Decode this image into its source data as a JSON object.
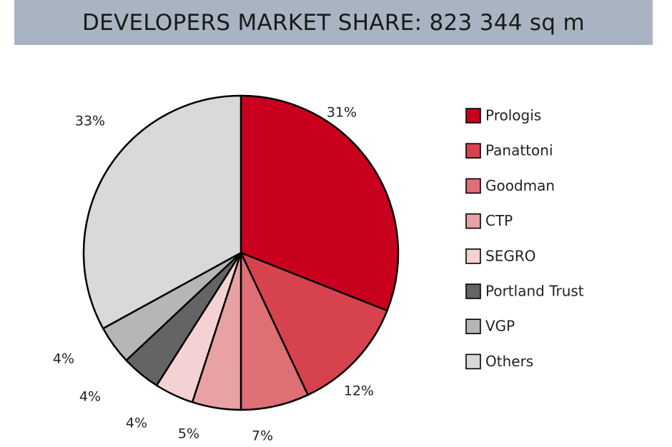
{
  "title": "DEVELOPERS MARKET SHARE: 823 344 sq m",
  "chart_data": {
    "type": "pie",
    "title": "DEVELOPERS MARKET SHARE: 823 344 sq m",
    "legend_position": "right",
    "slices": [
      {
        "name": "Prologis",
        "value": 31,
        "label": "31%",
        "color": "#c8001e"
      },
      {
        "name": "Panattoni",
        "value": 12,
        "label": "12%",
        "color": "#d6434e"
      },
      {
        "name": "Goodman",
        "value": 7,
        "label": "7%",
        "color": "#de6f75"
      },
      {
        "name": "CTP",
        "value": 5,
        "label": "5%",
        "color": "#e8a1a4"
      },
      {
        "name": "SEGRO",
        "value": 4,
        "label": "4%",
        "color": "#f4d2d3"
      },
      {
        "name": "Portland Trust",
        "value": 4,
        "label": "4%",
        "color": "#646464"
      },
      {
        "name": "VGP",
        "value": 4,
        "label": "4%",
        "color": "#b6b6b6"
      },
      {
        "name": "Others",
        "value": 33,
        "label": "33%",
        "color": "#d9d9d9"
      }
    ]
  }
}
